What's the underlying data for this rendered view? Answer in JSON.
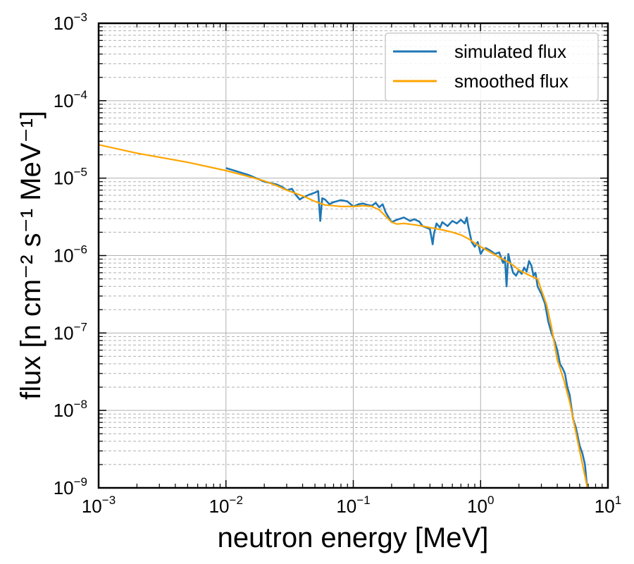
{
  "chart_data": {
    "type": "line",
    "xlabel": "neutron energy [MeV]",
    "ylabel": "flux [n cm⁻² s⁻¹ MeV⁻¹]",
    "xscale": "log",
    "yscale": "log",
    "xlim": [
      0.001,
      10
    ],
    "ylim": [
      1e-09,
      0.001
    ],
    "x_ticks": [
      {
        "base": "10",
        "exp": "−3"
      },
      {
        "base": "10",
        "exp": "−2"
      },
      {
        "base": "10",
        "exp": "−1"
      },
      {
        "base": "10",
        "exp": "0"
      },
      {
        "base": "10",
        "exp": "1"
      }
    ],
    "y_ticks": [
      {
        "base": "10",
        "exp": "−9"
      },
      {
        "base": "10",
        "exp": "−8"
      },
      {
        "base": "10",
        "exp": "−7"
      },
      {
        "base": "10",
        "exp": "−6"
      },
      {
        "base": "10",
        "exp": "−5"
      },
      {
        "base": "10",
        "exp": "−4"
      },
      {
        "base": "10",
        "exp": "−3"
      }
    ],
    "grid": "major solid, minor dashed",
    "legend_position": "top-right",
    "series": [
      {
        "name": "simulated flux",
        "color": "#1f77b4",
        "x": [
          0.01,
          0.015,
          0.02,
          0.025,
          0.028,
          0.03,
          0.033,
          0.035,
          0.038,
          0.04,
          0.045,
          0.05,
          0.053,
          0.055,
          0.057,
          0.06,
          0.065,
          0.07,
          0.08,
          0.09,
          0.1,
          0.11,
          0.12,
          0.13,
          0.14,
          0.15,
          0.16,
          0.17,
          0.18,
          0.2,
          0.22,
          0.25,
          0.28,
          0.3,
          0.33,
          0.35,
          0.4,
          0.42,
          0.43,
          0.45,
          0.48,
          0.5,
          0.55,
          0.6,
          0.65,
          0.7,
          0.75,
          0.78,
          0.8,
          0.85,
          0.9,
          0.95,
          1.0,
          1.05,
          1.1,
          1.2,
          1.3,
          1.4,
          1.5,
          1.55,
          1.6,
          1.65,
          1.7,
          1.8,
          1.9,
          2.0,
          2.1,
          2.2,
          2.3,
          2.4,
          2.5,
          2.6,
          2.7,
          2.8,
          3.0,
          3.2,
          3.4,
          3.6,
          3.8,
          4.0,
          4.2,
          4.4,
          4.6,
          4.8,
          5.0,
          5.3,
          5.6,
          6.0,
          6.3,
          6.6,
          6.8,
          7.0
        ],
        "y": [
          1.35e-05,
          1.1e-05,
          9e-06,
          8.3e-06,
          7.6e-06,
          7e-06,
          7.3e-06,
          6.2e-06,
          5.3e-06,
          5.6e-06,
          6.1e-06,
          6.5e-06,
          6.8e-06,
          2.8e-06,
          5.5e-06,
          5.3e-06,
          4.6e-06,
          4.9e-06,
          5.2e-06,
          5e-06,
          4.3e-06,
          4.6e-06,
          4.7e-06,
          4.5e-06,
          4.4e-06,
          4.8e-06,
          4.2e-06,
          4.6e-06,
          3.6e-06,
          2.7e-06,
          2.9e-06,
          3.1e-06,
          2.8e-06,
          2.95e-06,
          2.75e-06,
          2.4e-06,
          2.2e-06,
          1.4e-06,
          1.9e-06,
          2.6e-06,
          2.3e-06,
          2.7e-06,
          2.4e-06,
          2.8e-06,
          2.6e-06,
          2.9e-06,
          2.6e-06,
          3.1e-06,
          2.4e-06,
          1.5e-06,
          1.3e-06,
          1.5e-06,
          1.05e-06,
          1.2e-06,
          1.25e-06,
          1.15e-06,
          1.05e-06,
          1.1e-06,
          8e-07,
          9.5e-07,
          4e-07,
          1.05e-06,
          8.5e-07,
          6e-07,
          5.5e-07,
          6.5e-07,
          5.8e-07,
          7e-07,
          6.2e-07,
          8.5e-07,
          7.5e-07,
          5.5e-07,
          6e-07,
          4e-07,
          3.2e-07,
          2.4e-07,
          1.4e-07,
          1e-07,
          8e-08,
          6e-08,
          4e-08,
          3.5e-08,
          3e-08,
          2e-08,
          1.6e-08,
          8e-09,
          6e-09,
          3.5e-09,
          2.8e-09,
          2e-09,
          1.2e-09,
          8e-10
        ]
      },
      {
        "name": "smoothed flux",
        "color": "#ffa500",
        "x": [
          0.001,
          0.002,
          0.005,
          0.01,
          0.015,
          0.02,
          0.025,
          0.03,
          0.035,
          0.04,
          0.05,
          0.06,
          0.07,
          0.08,
          0.1,
          0.12,
          0.14,
          0.16,
          0.18,
          0.2,
          0.22,
          0.25,
          0.3,
          0.35,
          0.4,
          0.5,
          0.6,
          0.7,
          0.8,
          0.9,
          1.0,
          1.2,
          1.4,
          1.6,
          1.8,
          2.0,
          2.2,
          2.5,
          2.8,
          3.0,
          3.3,
          3.6,
          4.0,
          4.5,
          5.0,
          5.5,
          6.0,
          6.5,
          7.0
        ],
        "y": [
          2.7e-05,
          2.1e-05,
          1.6e-05,
          1.25e-05,
          1.05e-05,
          9.2e-06,
          8e-06,
          7e-06,
          6.4e-06,
          5.9e-06,
          5e-06,
          4.5e-06,
          4.4e-06,
          4.3e-06,
          4.3e-06,
          4.4e-06,
          4.3e-06,
          3.9e-06,
          3.2e-06,
          2.7e-06,
          2.55e-06,
          2.6e-06,
          2.5e-06,
          2.4e-06,
          2.3e-06,
          2.15e-06,
          2e-06,
          1.85e-06,
          1.65e-06,
          1.45e-06,
          1.3e-06,
          1.1e-06,
          9.5e-07,
          8.5e-07,
          7.5e-07,
          6.5e-07,
          6e-07,
          5.4e-07,
          5e-07,
          3.6e-07,
          2.3e-07,
          1.2e-07,
          4.5e-08,
          2.5e-08,
          1.3e-08,
          6e-09,
          3e-09,
          1.6e-09,
          9e-10
        ]
      }
    ]
  }
}
